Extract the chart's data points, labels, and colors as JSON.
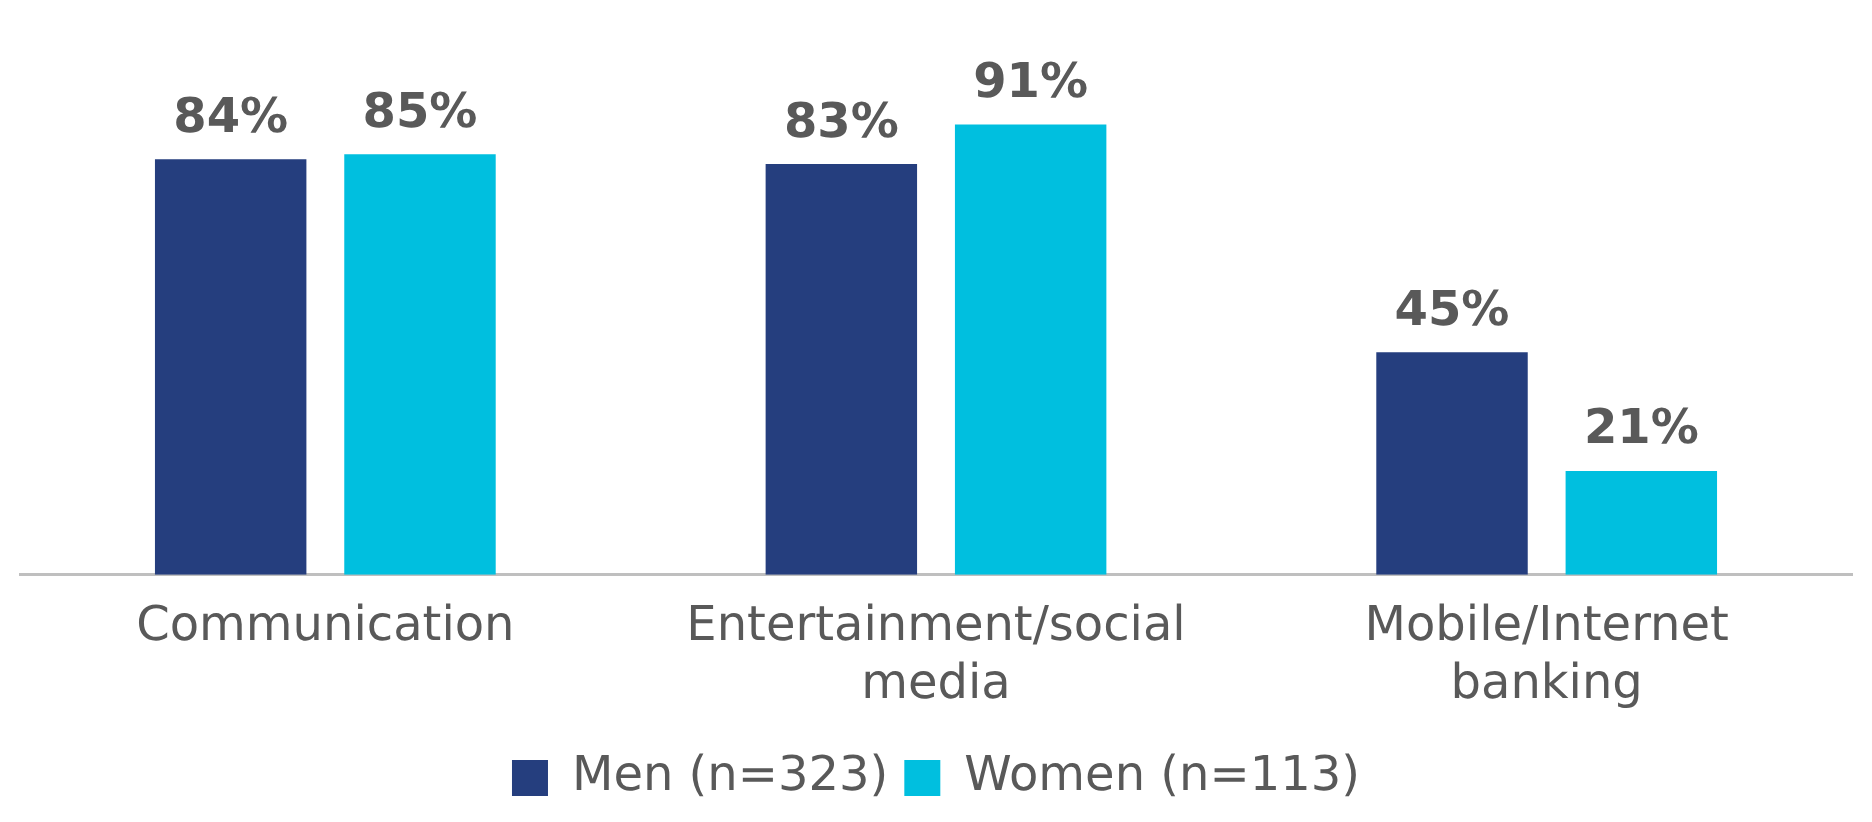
{
  "chart_data": {
    "type": "bar",
    "categories": [
      "Communication",
      "Entertainment/social media",
      "Mobile/Internet banking"
    ],
    "series": [
      {
        "name": "Men (n=323)",
        "color": "#253e7e",
        "values": [
          84,
          83,
          45
        ],
        "value_labels": [
          "84%",
          "83%",
          "45%"
        ]
      },
      {
        "name": "Women (n=113)",
        "color": "#00bfdf",
        "values": [
          85,
          91,
          21
        ],
        "value_labels": [
          "85%",
          "91%",
          "21%"
        ]
      }
    ],
    "grid": false,
    "legend": "bottom",
    "tick_labels": "x"
  }
}
